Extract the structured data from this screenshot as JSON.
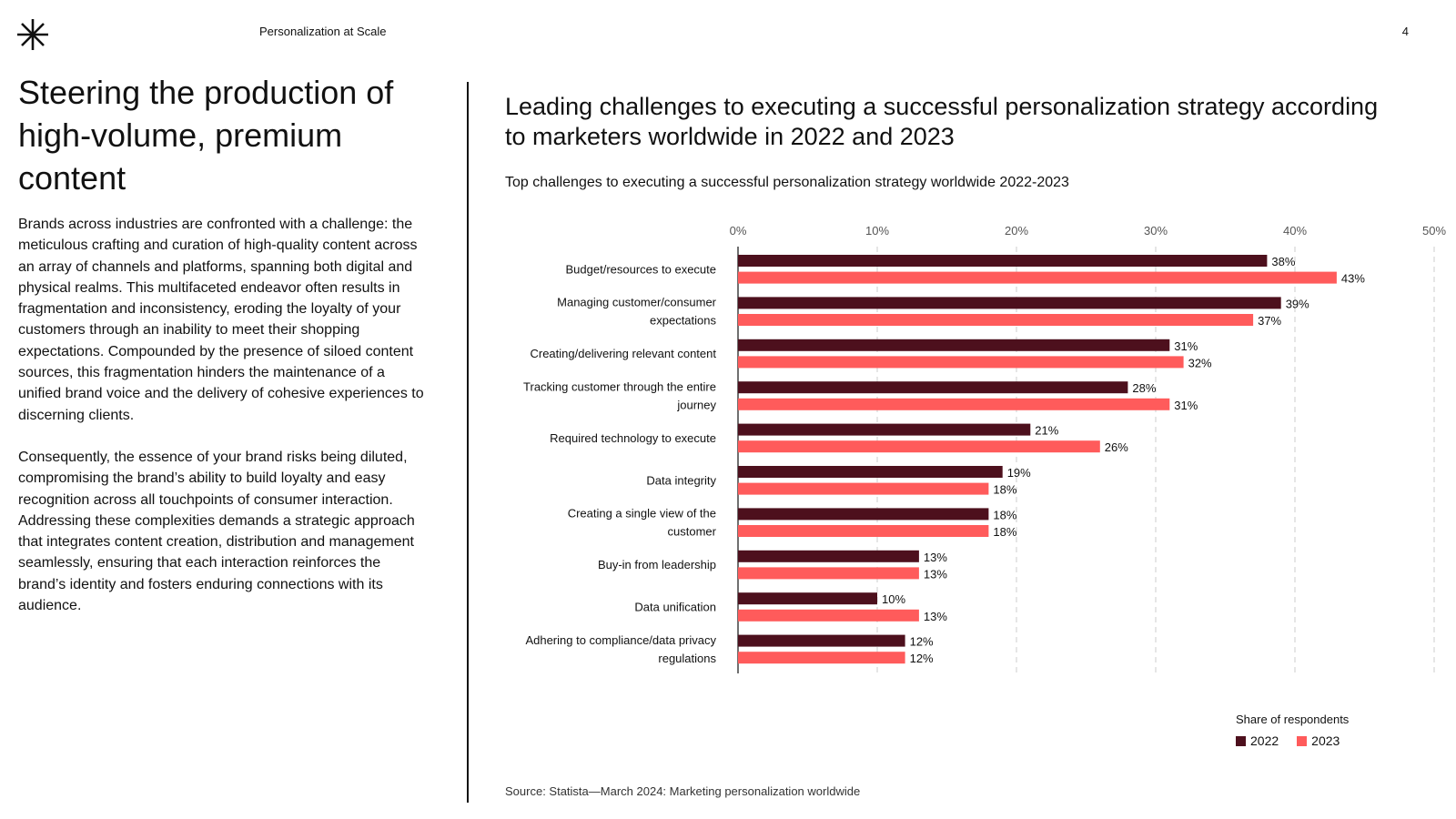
{
  "header": {
    "title": "Personalization at Scale",
    "page_number": "4",
    "logo_icon": "asterisk-logo-icon"
  },
  "left": {
    "heading": "Steering the production of high-volume, premium content",
    "paragraphs": [
      "Brands across industries are confronted with a challenge: the meticulous crafting and curation of high-quality content across an array of channels and platforms, spanning both digital and physical realms. This multifaceted endeavor often results in fragmentation and inconsistency, eroding the loyalty of your customers through an inability to meet their shopping expectations. Compounded by the presence of siloed content sources, this fragmentation hinders the maintenance of a unified brand voice and the delivery of cohesive experiences to discerning clients.",
      "Consequently, the essence of your brand risks being diluted, compromising the brand’s ability to build loyalty and easy recognition across all touchpoints of consumer interaction. Addressing these complexities demands a strategic approach that integrates content creation, distribution and management seamlessly, ensuring that each interaction reinforces the brand’s identity and fosters enduring connections with its audience."
    ]
  },
  "source": "Source: Statista—March 2024: Marketing personalization worldwide",
  "colors": {
    "series_2022": "#4d101d",
    "series_2023": "#ff5b5b",
    "grid": "#cccccc"
  },
  "chart_data": {
    "type": "bar",
    "orientation": "horizontal",
    "title": "Leading challenges to executing a successful personalization strategy according to marketers worldwide in 2022 and 2023",
    "subtitle": "Top challenges to executing a successful personalization strategy worldwide 2022-2023",
    "categories": [
      "Budget/resources to execute",
      "Managing customer/consumer expectations",
      "Creating/delivering relevant content",
      "Tracking customer through the entire journey",
      "Required technology to execute",
      "Data integrity",
      "Creating a single view of the customer",
      "Buy-in from leadership",
      "Data unification",
      "Adhering to compliance/data privacy regulations"
    ],
    "category_lines": [
      [
        "Budget/resources to execute"
      ],
      [
        "Managing customer/consumer",
        "expectations"
      ],
      [
        "Creating/delivering relevant content"
      ],
      [
        "Tracking customer through the entire",
        "journey"
      ],
      [
        "Required technology to execute"
      ],
      [
        "Data integrity"
      ],
      [
        "Creating a single view of the",
        "customer"
      ],
      [
        "Buy-in from leadership"
      ],
      [
        "Data unification"
      ],
      [
        "Adhering to compliance/data privacy",
        "regulations"
      ]
    ],
    "series": [
      {
        "name": "2022",
        "values": [
          38,
          39,
          31,
          28,
          21,
          19,
          18,
          13,
          10,
          12
        ]
      },
      {
        "name": "2023",
        "values": [
          43,
          37,
          32,
          31,
          26,
          18,
          18,
          13,
          13,
          12
        ]
      }
    ],
    "xlim": [
      0,
      50
    ],
    "ticks": [
      "0%",
      "10%",
      "20%",
      "30%",
      "40%",
      "50%"
    ],
    "value_suffix": "%",
    "grid": "dashed vertical",
    "legend_title": "Share of respondents",
    "legend_position": "bottom-right"
  }
}
